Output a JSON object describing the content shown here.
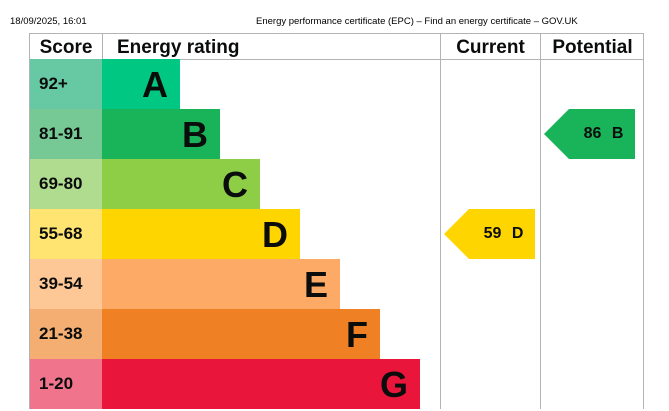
{
  "print_header": {
    "date": "18/09/2025, 16:01",
    "title": "Energy performance certificate (EPC) – Find an energy certificate – GOV.UK"
  },
  "table": {
    "headers": {
      "score": "Score",
      "rating": "Energy rating",
      "current": "Current",
      "potential": "Potential"
    },
    "bands": [
      {
        "letter": "A",
        "range": "92+",
        "score_color": "#66c9a4",
        "bar_color": "#00c781"
      },
      {
        "letter": "B",
        "range": "81-91",
        "score_color": "#76c994",
        "bar_color": "#19b459"
      },
      {
        "letter": "C",
        "range": "69-80",
        "score_color": "#b0dc8f",
        "bar_color": "#8dce46"
      },
      {
        "letter": "D",
        "range": "55-68",
        "score_color": "#ffe472",
        "bar_color": "#ffd500"
      },
      {
        "letter": "E",
        "range": "39-54",
        "score_color": "#fdc896",
        "bar_color": "#fcaa65"
      },
      {
        "letter": "F",
        "range": "21-38",
        "score_color": "#f5ae72",
        "bar_color": "#ef8023"
      },
      {
        "letter": "G",
        "range": "1-20",
        "score_color": "#f0758c",
        "bar_color": "#e9153b"
      }
    ],
    "current": {
      "score": "59",
      "band": "D",
      "label": "59 D",
      "color": "#ffd500"
    },
    "potential": {
      "score": "86",
      "band": "B",
      "label": "86 B",
      "color": "#19b459"
    }
  }
}
